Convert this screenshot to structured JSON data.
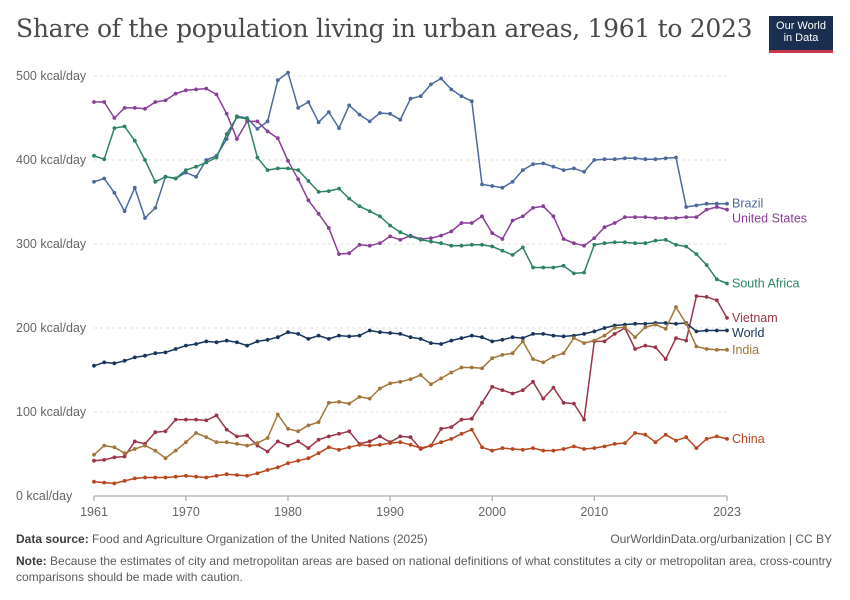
{
  "header": {
    "title": "Share of the population living in urban areas, 1961 to 2023",
    "logo_line1": "Our World",
    "logo_line2": "in Data"
  },
  "footer": {
    "source_label": "Data source:",
    "source_text": "Food and Agriculture Organization of the United Nations (2025)",
    "url_text": "OurWorldinData.org/urbanization | CC BY",
    "note_label": "Note:",
    "note_text": "Because the estimates of city and metropolitan areas are based on national definitions of what constitutes a city or metropolitan area, cross-country comparisons should be made with caution."
  },
  "chart_data": {
    "type": "line",
    "title": "Share of the population living in urban areas, 1961 to 2023",
    "x": [
      1961,
      1962,
      1963,
      1964,
      1965,
      1966,
      1967,
      1968,
      1969,
      1970,
      1971,
      1972,
      1973,
      1974,
      1975,
      1976,
      1977,
      1978,
      1979,
      1980,
      1981,
      1982,
      1983,
      1984,
      1985,
      1986,
      1987,
      1988,
      1989,
      1990,
      1991,
      1992,
      1993,
      1994,
      1995,
      1996,
      1997,
      1998,
      1999,
      2000,
      2001,
      2002,
      2003,
      2004,
      2005,
      2006,
      2007,
      2008,
      2009,
      2010,
      2011,
      2012,
      2013,
      2014,
      2015,
      2016,
      2017,
      2018,
      2019,
      2020,
      2021,
      2022,
      2023
    ],
    "xlim": [
      1961,
      2023
    ],
    "ylim": [
      0,
      500
    ],
    "y_ticks": [
      0,
      100,
      200,
      300,
      400,
      500
    ],
    "y_tick_labels": [
      "0 kcal/day",
      "100 kcal/day",
      "200 kcal/day",
      "300 kcal/day",
      "400 kcal/day",
      "500 kcal/day"
    ],
    "x_ticks": [
      1961,
      1970,
      1980,
      1990,
      2000,
      2010,
      2023
    ],
    "x_tick_labels": [
      "1961",
      "1970",
      "1980",
      "1990",
      "2000",
      "2010",
      "2023"
    ],
    "grid": "horizontal dashed",
    "legend": "labels at line ends (right)",
    "series": [
      {
        "name": "Brazil",
        "color": "#4c6a9c",
        "values": [
          374,
          378,
          361,
          339,
          367,
          331,
          343,
          380,
          378,
          385,
          380,
          400,
          405,
          425,
          452,
          450,
          437,
          446,
          495,
          504,
          462,
          469,
          445,
          457,
          438,
          465,
          454,
          446,
          456,
          455,
          448,
          473,
          476,
          490,
          497,
          484,
          476,
          470,
          371,
          369,
          367,
          374,
          388,
          395,
          396,
          392,
          388,
          390,
          386,
          400,
          401,
          401,
          402,
          402,
          401,
          401,
          402,
          403,
          344,
          346,
          348,
          348,
          348
        ]
      },
      {
        "name": "United States",
        "color": "#883f98",
        "values": [
          469,
          469,
          450,
          462,
          462,
          461,
          469,
          471,
          479,
          483,
          484,
          485,
          478,
          455,
          425,
          446,
          446,
          434,
          426,
          399,
          377,
          352,
          336,
          319,
          288,
          289,
          299,
          298,
          301,
          309,
          305,
          310,
          306,
          307,
          310,
          315,
          325,
          325,
          333,
          313,
          306,
          328,
          333,
          343,
          345,
          333,
          306,
          301,
          298,
          307,
          320,
          325,
          332,
          332,
          332,
          331,
          331,
          331,
          332,
          332,
          341,
          344,
          341
        ]
      },
      {
        "name": "South Africa",
        "color": "#2c8465",
        "values": [
          405,
          401,
          438,
          440,
          423,
          400,
          374,
          380,
          378,
          388,
          392,
          397,
          403,
          431,
          451,
          449,
          403,
          388,
          390,
          390,
          388,
          375,
          362,
          363,
          366,
          354,
          345,
          339,
          333,
          322,
          314,
          309,
          305,
          303,
          301,
          298,
          298,
          299,
          299,
          297,
          292,
          287,
          296,
          272,
          272,
          272,
          274,
          265,
          266,
          299,
          301,
          302,
          302,
          301,
          301,
          304,
          305,
          299,
          297,
          288,
          275,
          258,
          253
        ]
      },
      {
        "name": "Vietnam",
        "color": "#9a3448",
        "values": [
          42,
          43,
          46,
          47,
          65,
          62,
          76,
          77,
          91,
          91,
          91,
          90,
          96,
          79,
          71,
          72,
          60,
          53,
          65,
          60,
          65,
          57,
          67,
          71,
          74,
          77,
          62,
          65,
          71,
          64,
          71,
          70,
          56,
          60,
          80,
          82,
          91,
          92,
          111,
          130,
          126,
          122,
          126,
          136,
          116,
          129,
          111,
          110,
          91,
          184,
          184,
          193,
          200,
          175,
          179,
          177,
          163,
          188,
          185,
          238,
          237,
          233,
          212
        ]
      },
      {
        "name": "World",
        "color": "#18365c",
        "values": [
          155,
          159,
          158,
          161,
          165,
          167,
          170,
          171,
          175,
          179,
          181,
          184,
          183,
          185,
          183,
          179,
          184,
          186,
          189,
          195,
          193,
          187,
          191,
          187,
          191,
          190,
          191,
          197,
          195,
          194,
          193,
          189,
          187,
          182,
          181,
          185,
          188,
          191,
          189,
          184,
          186,
          189,
          188,
          193,
          193,
          191,
          190,
          191,
          193,
          196,
          200,
          203,
          204,
          205,
          205,
          206,
          206,
          205,
          206,
          196,
          197,
          197,
          197
        ]
      },
      {
        "name": "India",
        "color": "#a2763a",
        "values": [
          49,
          60,
          58,
          51,
          56,
          60,
          54,
          45,
          54,
          64,
          75,
          70,
          64,
          64,
          62,
          60,
          63,
          69,
          97,
          80,
          77,
          84,
          88,
          111,
          112,
          110,
          118,
          116,
          128,
          134,
          136,
          139,
          144,
          133,
          140,
          147,
          153,
          153,
          152,
          164,
          168,
          170,
          184,
          163,
          159,
          166,
          170,
          188,
          182,
          185,
          191,
          200,
          201,
          189,
          201,
          204,
          199,
          225,
          205,
          178,
          175,
          174,
          174
        ]
      },
      {
        "name": "China",
        "color": "#b8461f",
        "values": [
          17,
          16,
          15,
          18,
          21,
          22,
          22,
          22,
          23,
          24,
          23,
          22,
          24,
          26,
          25,
          24,
          27,
          31,
          34,
          39,
          42,
          45,
          51,
          58,
          55,
          58,
          61,
          60,
          61,
          63,
          64,
          61,
          57,
          60,
          64,
          68,
          74,
          79,
          58,
          54,
          57,
          56,
          55,
          57,
          54,
          54,
          56,
          59,
          56,
          57,
          59,
          62,
          63,
          75,
          73,
          64,
          73,
          66,
          70,
          57,
          68,
          71,
          68
        ]
      }
    ]
  }
}
